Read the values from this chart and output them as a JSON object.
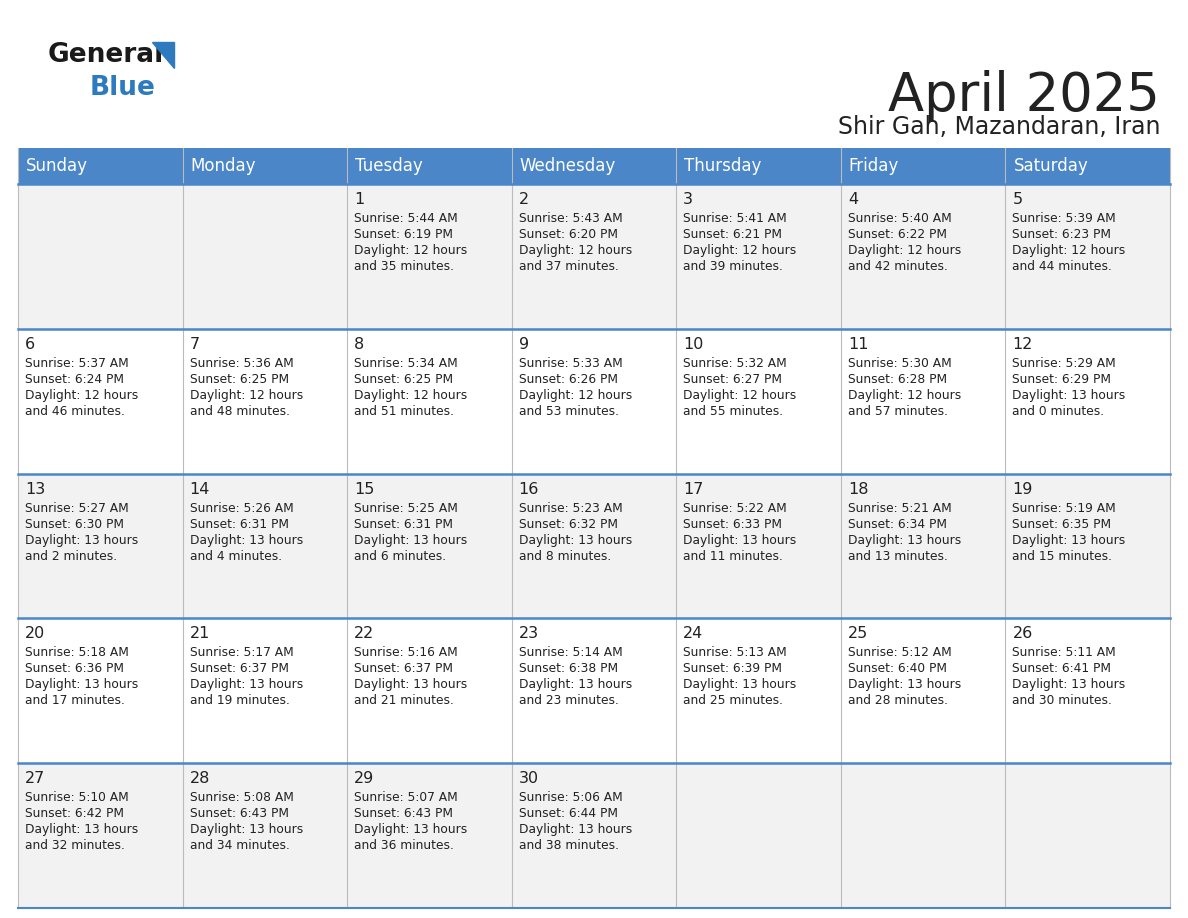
{
  "title": "April 2025",
  "subtitle": "Shir Gah, Mazandaran, Iran",
  "header_color": "#4a86c8",
  "header_text_color": "#ffffff",
  "row_bg_odd": "#f2f2f2",
  "row_bg_even": "#ffffff",
  "border_color": "#4a86c8",
  "grid_color": "#bbbbbb",
  "text_color": "#222222",
  "days_of_week": [
    "Sunday",
    "Monday",
    "Tuesday",
    "Wednesday",
    "Thursday",
    "Friday",
    "Saturday"
  ],
  "weeks": [
    [
      {
        "day": "",
        "sunrise": "",
        "sunset": "",
        "daylight": ""
      },
      {
        "day": "",
        "sunrise": "",
        "sunset": "",
        "daylight": ""
      },
      {
        "day": "1",
        "sunrise": "5:44 AM",
        "sunset": "6:19 PM",
        "daylight": "12 hours and 35 minutes."
      },
      {
        "day": "2",
        "sunrise": "5:43 AM",
        "sunset": "6:20 PM",
        "daylight": "12 hours and 37 minutes."
      },
      {
        "day": "3",
        "sunrise": "5:41 AM",
        "sunset": "6:21 PM",
        "daylight": "12 hours and 39 minutes."
      },
      {
        "day": "4",
        "sunrise": "5:40 AM",
        "sunset": "6:22 PM",
        "daylight": "12 hours and 42 minutes."
      },
      {
        "day": "5",
        "sunrise": "5:39 AM",
        "sunset": "6:23 PM",
        "daylight": "12 hours and 44 minutes."
      }
    ],
    [
      {
        "day": "6",
        "sunrise": "5:37 AM",
        "sunset": "6:24 PM",
        "daylight": "12 hours and 46 minutes."
      },
      {
        "day": "7",
        "sunrise": "5:36 AM",
        "sunset": "6:25 PM",
        "daylight": "12 hours and 48 minutes."
      },
      {
        "day": "8",
        "sunrise": "5:34 AM",
        "sunset": "6:25 PM",
        "daylight": "12 hours and 51 minutes."
      },
      {
        "day": "9",
        "sunrise": "5:33 AM",
        "sunset": "6:26 PM",
        "daylight": "12 hours and 53 minutes."
      },
      {
        "day": "10",
        "sunrise": "5:32 AM",
        "sunset": "6:27 PM",
        "daylight": "12 hours and 55 minutes."
      },
      {
        "day": "11",
        "sunrise": "5:30 AM",
        "sunset": "6:28 PM",
        "daylight": "12 hours and 57 minutes."
      },
      {
        "day": "12",
        "sunrise": "5:29 AM",
        "sunset": "6:29 PM",
        "daylight": "13 hours and 0 minutes."
      }
    ],
    [
      {
        "day": "13",
        "sunrise": "5:27 AM",
        "sunset": "6:30 PM",
        "daylight": "13 hours and 2 minutes."
      },
      {
        "day": "14",
        "sunrise": "5:26 AM",
        "sunset": "6:31 PM",
        "daylight": "13 hours and 4 minutes."
      },
      {
        "day": "15",
        "sunrise": "5:25 AM",
        "sunset": "6:31 PM",
        "daylight": "13 hours and 6 minutes."
      },
      {
        "day": "16",
        "sunrise": "5:23 AM",
        "sunset": "6:32 PM",
        "daylight": "13 hours and 8 minutes."
      },
      {
        "day": "17",
        "sunrise": "5:22 AM",
        "sunset": "6:33 PM",
        "daylight": "13 hours and 11 minutes."
      },
      {
        "day": "18",
        "sunrise": "5:21 AM",
        "sunset": "6:34 PM",
        "daylight": "13 hours and 13 minutes."
      },
      {
        "day": "19",
        "sunrise": "5:19 AM",
        "sunset": "6:35 PM",
        "daylight": "13 hours and 15 minutes."
      }
    ],
    [
      {
        "day": "20",
        "sunrise": "5:18 AM",
        "sunset": "6:36 PM",
        "daylight": "13 hours and 17 minutes."
      },
      {
        "day": "21",
        "sunrise": "5:17 AM",
        "sunset": "6:37 PM",
        "daylight": "13 hours and 19 minutes."
      },
      {
        "day": "22",
        "sunrise": "5:16 AM",
        "sunset": "6:37 PM",
        "daylight": "13 hours and 21 minutes."
      },
      {
        "day": "23",
        "sunrise": "5:14 AM",
        "sunset": "6:38 PM",
        "daylight": "13 hours and 23 minutes."
      },
      {
        "day": "24",
        "sunrise": "5:13 AM",
        "sunset": "6:39 PM",
        "daylight": "13 hours and 25 minutes."
      },
      {
        "day": "25",
        "sunrise": "5:12 AM",
        "sunset": "6:40 PM",
        "daylight": "13 hours and 28 minutes."
      },
      {
        "day": "26",
        "sunrise": "5:11 AM",
        "sunset": "6:41 PM",
        "daylight": "13 hours and 30 minutes."
      }
    ],
    [
      {
        "day": "27",
        "sunrise": "5:10 AM",
        "sunset": "6:42 PM",
        "daylight": "13 hours and 32 minutes."
      },
      {
        "day": "28",
        "sunrise": "5:08 AM",
        "sunset": "6:43 PM",
        "daylight": "13 hours and 34 minutes."
      },
      {
        "day": "29",
        "sunrise": "5:07 AM",
        "sunset": "6:43 PM",
        "daylight": "13 hours and 36 minutes."
      },
      {
        "day": "30",
        "sunrise": "5:06 AM",
        "sunset": "6:44 PM",
        "daylight": "13 hours and 38 minutes."
      },
      {
        "day": "",
        "sunrise": "",
        "sunset": "",
        "daylight": ""
      },
      {
        "day": "",
        "sunrise": "",
        "sunset": "",
        "daylight": ""
      },
      {
        "day": "",
        "sunrise": "",
        "sunset": "",
        "daylight": ""
      }
    ]
  ],
  "logo_text1": "General",
  "logo_text2": "Blue",
  "logo_color1": "#1a1a1a",
  "logo_color2": "#2e7abf",
  "triangle_color": "#2e7abf"
}
